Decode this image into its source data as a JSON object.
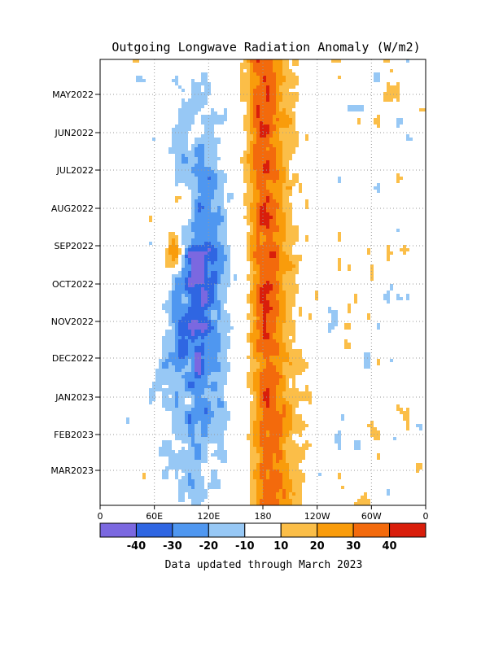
{
  "chart_data": {
    "type": "heatmap",
    "title": "Outgoing Longwave Radiation Anomaly (W/m2)",
    "xlabel": "",
    "ylabel": "",
    "x_ticks": [
      "0",
      "60E",
      "120E",
      "180",
      "120W",
      "60W",
      "0"
    ],
    "y_ticks": [
      "MAY2022",
      "JUN2022",
      "JUL2022",
      "AUG2022",
      "SEP2022",
      "OCT2022",
      "NOV2022",
      "DEC2022",
      "JAN2023",
      "FEB2023",
      "MAR2023"
    ],
    "grid": true,
    "colorbar": {
      "labels": [
        "-40",
        "-30",
        "-20",
        "-10",
        "10",
        "20",
        "30",
        "40"
      ],
      "bins": [
        {
          "range": "< -40",
          "color": "#7b68e0"
        },
        {
          "range": "-40 to -30",
          "color": "#2f66e2"
        },
        {
          "range": "-30 to -20",
          "color": "#4f97f0"
        },
        {
          "range": "-20 to -10",
          "color": "#97c8f5"
        },
        {
          "range": "-10 to 10",
          "color": "#ffffff"
        },
        {
          "range": "10 to 20",
          "color": "#fbbe48"
        },
        {
          "range": "20 to 30",
          "color": "#f99c0b"
        },
        {
          "range": "30 to 40",
          "color": "#f36a0c"
        },
        {
          "range": "> 40",
          "color": "#d91e0b"
        }
      ]
    },
    "features": [
      {
        "region": "Maritime Continent (~60E-150E)",
        "anomaly": "negative (-10 to -40)",
        "period": "AUG2022-MAR2023"
      },
      {
        "region": "Central Pacific near 180",
        "anomaly": "positive (+10 to +40)",
        "period": "APR2022-MAR2023"
      },
      {
        "region": "Eastern Pacific (~120W-60W)",
        "anomaly": "mixed, mostly near 0",
        "period": "APR2022-MAR2023"
      }
    ]
  },
  "footer": "Data updated through March 2023"
}
